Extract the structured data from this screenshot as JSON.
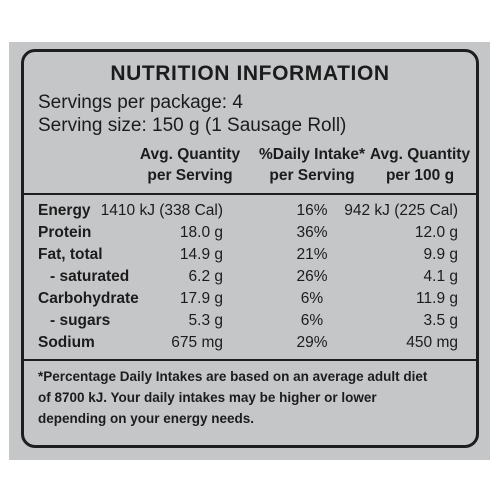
{
  "title": "NUTRITION INFORMATION",
  "servings_per_package": "Servings per package: 4",
  "serving_size": "Serving size: 150 g (1 Sausage Roll)",
  "headers": {
    "avg_per_serving": [
      "Avg. Quantity",
      "per Serving"
    ],
    "daily_intake": [
      "%Daily Intake*",
      "per Serving"
    ],
    "avg_per_100g": [
      "Avg. Quantity",
      "per 100 g"
    ]
  },
  "rows": [
    {
      "label": "Energy",
      "per_serving": "1410 kJ (338 Cal)",
      "daily_intake": "16%",
      "per_100g": "942 kJ (225 Cal)"
    },
    {
      "label": "Protein",
      "per_serving": "18.0 g",
      "daily_intake": "36%",
      "per_100g": "12.0 g"
    },
    {
      "label": "Fat, total",
      "per_serving": "14.9 g",
      "daily_intake": "21%",
      "per_100g": "9.9 g"
    },
    {
      "label": "- saturated",
      "per_serving": "6.2 g",
      "daily_intake": "26%",
      "per_100g": "4.1 g"
    },
    {
      "label": "Carbohydrate",
      "per_serving": "17.9 g",
      "daily_intake": "6%",
      "per_100g": "11.9 g"
    },
    {
      "label": "- sugars",
      "per_serving": "5.3 g",
      "daily_intake": "6%",
      "per_100g": "3.5 g"
    },
    {
      "label": "Sodium",
      "per_serving": "675 mg",
      "daily_intake": "29%",
      "per_100g": "450 mg"
    }
  ],
  "footnote": [
    "*Percentage Daily Intakes are based on an average adult diet",
    "of 8700 kJ. Your daily intakes may be higher or lower",
    "depending on your energy needs."
  ],
  "colors": {
    "panel": "#c5c6c8",
    "text": "#1c1c1c"
  }
}
